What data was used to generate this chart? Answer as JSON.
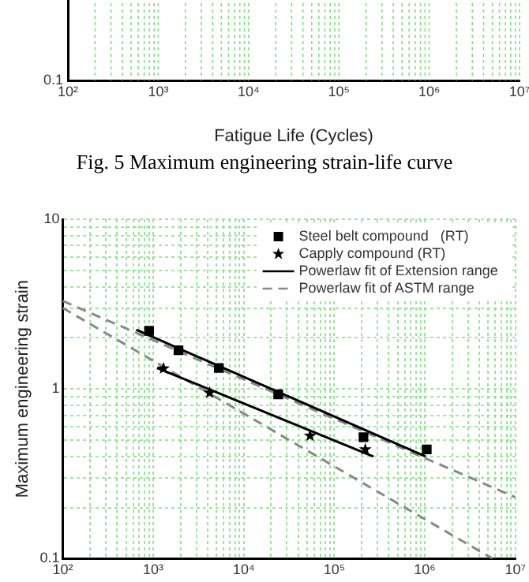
{
  "chart_data": [
    {
      "type": "other",
      "xlabel": "Fatigue Life (Cycles)",
      "annotations": [
        "0.1",
        "10²",
        "10³",
        "10⁴",
        "10⁵",
        "10⁶",
        "10⁷",
        "Fig. 5 Maximum engineering strain-life curve"
      ]
    },
    {
      "type": "scatter",
      "ylabel": "Maximum engineering strain",
      "log": "xy",
      "grid": true,
      "legend": "top right",
      "xlim": [
        100,
        10000000
      ],
      "ylim": [
        0.1,
        10
      ],
      "xticks": [
        {
          "value": 100,
          "label": "10²"
        },
        {
          "value": 200,
          "label": null
        },
        {
          "value": 300,
          "label": null
        },
        {
          "value": 400,
          "label": null
        },
        {
          "value": 500,
          "label": null
        },
        {
          "value": 600,
          "label": null
        },
        {
          "value": 700,
          "label": null
        },
        {
          "value": 800,
          "label": null
        },
        {
          "value": 900,
          "label": null
        },
        {
          "value": 1000,
          "label": "10³"
        },
        {
          "value": 2000,
          "label": null
        },
        {
          "value": 3000,
          "label": null
        },
        {
          "value": 4000,
          "label": null
        },
        {
          "value": 5000,
          "label": null
        },
        {
          "value": 6000,
          "label": null
        },
        {
          "value": 7000,
          "label": null
        },
        {
          "value": 8000,
          "label": null
        },
        {
          "value": 9000,
          "label": null
        },
        {
          "value": 10000,
          "label": "10⁴"
        },
        {
          "value": 20000,
          "label": null
        },
        {
          "value": 30000,
          "label": null
        },
        {
          "value": 40000,
          "label": null
        },
        {
          "value": 50000,
          "label": null
        },
        {
          "value": 60000,
          "label": null
        },
        {
          "value": 70000,
          "label": null
        },
        {
          "value": 80000,
          "label": null
        },
        {
          "value": 90000,
          "label": null
        },
        {
          "value": 100000,
          "label": "10⁵"
        },
        {
          "value": 200000,
          "label": null
        },
        {
          "value": 300000,
          "label": null
        },
        {
          "value": 400000,
          "label": null
        },
        {
          "value": 500000,
          "label": null
        },
        {
          "value": 600000,
          "label": null
        },
        {
          "value": 700000,
          "label": null
        },
        {
          "value": 800000,
          "label": null
        },
        {
          "value": 900000,
          "label": null
        },
        {
          "value": 1000000,
          "label": "10⁶"
        },
        {
          "value": 2000000,
          "label": null
        },
        {
          "value": 3000000,
          "label": null
        },
        {
          "value": 4000000,
          "label": null
        },
        {
          "value": 5000000,
          "label": null
        },
        {
          "value": 6000000,
          "label": null
        },
        {
          "value": 7000000,
          "label": null
        },
        {
          "value": 8000000,
          "label": null
        },
        {
          "value": 9000000,
          "label": null
        },
        {
          "value": 10000000,
          "label": "10⁷"
        }
      ],
      "yticks": [
        0.1,
        {
          "value": 0.2,
          "label": null
        },
        {
          "value": 0.3,
          "label": null
        },
        {
          "value": 0.4,
          "label": null
        },
        {
          "value": 0.5,
          "label": null
        },
        {
          "value": 0.6,
          "label": null
        },
        {
          "value": 0.7,
          "label": null
        },
        {
          "value": 0.8,
          "label": null
        },
        {
          "value": 0.9,
          "label": null
        },
        1,
        {
          "value": 2,
          "label": null
        },
        {
          "value": 3,
          "label": null
        },
        {
          "value": 4,
          "label": null
        },
        {
          "value": 5,
          "label": null
        },
        {
          "value": 6,
          "label": null
        },
        {
          "value": 7,
          "label": null
        },
        {
          "value": 8,
          "label": null
        },
        {
          "value": 9,
          "label": null
        },
        10
      ],
      "series": [
        {
          "name": "Steel belt compound   (RT)",
          "type": "scatter",
          "marker": "square",
          "color": "#000000",
          "x": [
            900,
            1900,
            5300,
            24000,
            210000,
            1050000
          ],
          "values": [
            2.2,
            1.69,
            1.33,
            0.93,
            0.52,
            0.44
          ]
        },
        {
          "name": "Capply compound (RT)",
          "type": "scatter",
          "marker": "star",
          "color": "#000000",
          "x": [
            1300,
            4200,
            54000,
            220000
          ],
          "values": [
            1.32,
            0.95,
            0.53,
            0.44
          ]
        },
        {
          "name": "Powerlaw fit of Extension range",
          "type": "line",
          "marker": "none",
          "line_style": "solid",
          "color": "#000000",
          "x": [
            650,
            1020000
          ],
          "values": [
            2.23,
            0.4
          ]
        },
        {
          "type": "line",
          "marker": "none",
          "line_style": "solid",
          "color": "#000000",
          "x": [
            1100,
            270000
          ],
          "values": [
            1.33,
            0.4
          ]
        },
        {
          "name": "Powerlaw fit of ASTM range",
          "type": "line",
          "marker": "none",
          "line_style": "dashed",
          "color": "#888888",
          "x": [
            100,
            10000000
          ],
          "values": [
            3.3,
            0.23
          ]
        },
        {
          "type": "line",
          "marker": "none",
          "line_style": "dashed",
          "color": "#888888",
          "x": [
            100,
            5600000
          ],
          "values": [
            3.0,
            0.1
          ]
        }
      ]
    }
  ]
}
